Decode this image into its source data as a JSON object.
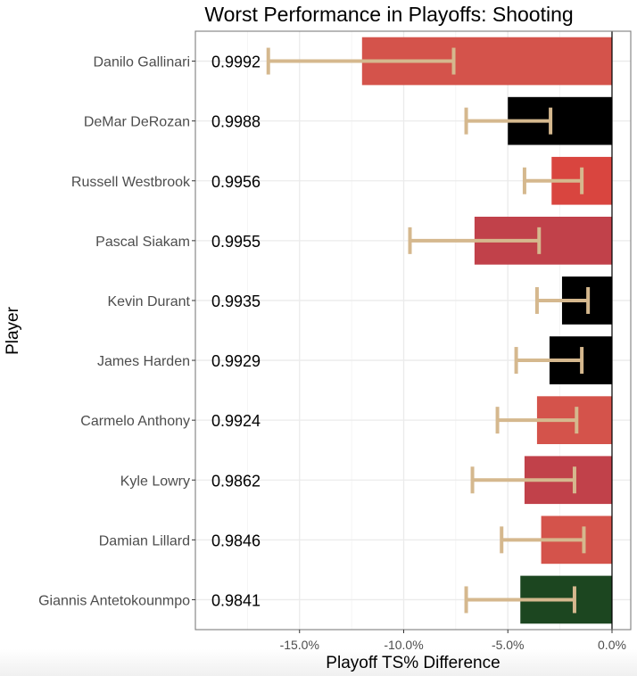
{
  "chart_data": {
    "type": "bar",
    "orientation": "horizontal",
    "title": "Worst Performance in Playoffs: Shooting",
    "xlabel": "Playoff TS% Difference",
    "ylabel": "Player",
    "xlim": [
      -20.0,
      0.9
    ],
    "x_ticks": [
      -15.0,
      -10.0,
      -5.0,
      0.0
    ],
    "x_tick_labels": [
      "-15.0%",
      "-10.0%",
      "-5.0%",
      "0.0%"
    ],
    "grid": true,
    "legend": "none",
    "categories": [
      "Danilo Gallinari",
      "DeMar DeRozan",
      "Russell Westbrook",
      "Pascal Siakam",
      "Kevin Durant",
      "James Harden",
      "Carmelo Anthony",
      "Kyle Lowry",
      "Damian Lillard",
      "Giannis Antetokounmpo"
    ],
    "values": [
      -12.0,
      -5.0,
      -2.9,
      -6.6,
      -2.4,
      -3.0,
      -3.6,
      -4.2,
      -3.4,
      -4.4
    ],
    "error_low": [
      -16.5,
      -7.0,
      -4.2,
      -9.7,
      -3.6,
      -4.6,
      -5.5,
      -6.7,
      -5.3,
      -7.0
    ],
    "error_high": [
      -7.6,
      -2.95,
      -1.45,
      -3.5,
      -1.15,
      -1.45,
      -1.7,
      -1.8,
      -1.35,
      -1.8
    ],
    "bar_labels": [
      "0.9992",
      "0.9988",
      "0.9956",
      "0.9955",
      "0.9935",
      "0.9929",
      "0.9924",
      "0.9862",
      "0.9846",
      "0.9841"
    ],
    "bar_colors": [
      "#D4534B",
      "#000000",
      "#D9453F",
      "#C1414A",
      "#000000",
      "#000000",
      "#D4534B",
      "#C1414A",
      "#D4534B",
      "#1C4620"
    ],
    "error_bar_color": "#D5B88E"
  }
}
